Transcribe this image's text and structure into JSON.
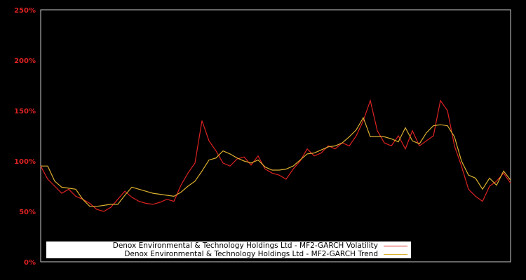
{
  "chart_data": {
    "type": "line",
    "title": "",
    "xlabel": "",
    "ylabel": "",
    "ylim": [
      0,
      250
    ],
    "y_ticks": [
      "0%",
      "50%",
      "100%",
      "150%",
      "200%",
      "250%"
    ],
    "y_tick_values": [
      0,
      50,
      100,
      150,
      200,
      250
    ],
    "grid": false,
    "legend_position": "lower center",
    "x_index": [
      0,
      1,
      2,
      3,
      4,
      5,
      6,
      7,
      8,
      9,
      10,
      11,
      12,
      13,
      14,
      15,
      16,
      17,
      18,
      19,
      20,
      21,
      22,
      23,
      24,
      25,
      26,
      27,
      28,
      29,
      30,
      31,
      32,
      33,
      34,
      35,
      36,
      37,
      38,
      39,
      40,
      41,
      42,
      43,
      44,
      45,
      46,
      47,
      48,
      49,
      50,
      51,
      52,
      53,
      54,
      55,
      56,
      57,
      58,
      59,
      60,
      61,
      62,
      63,
      64,
      65,
      66,
      67
    ],
    "series": [
      {
        "name": "Denox Environmental & Technology Holdings Ltd - MF2-GARCH Volatility",
        "color": "#dd2222",
        "values": [
          95,
          82,
          75,
          68,
          72,
          65,
          62,
          58,
          52,
          50,
          54,
          62,
          70,
          64,
          60,
          58,
          57,
          59,
          62,
          60,
          76,
          88,
          98,
          140,
          120,
          110,
          98,
          95,
          102,
          104,
          96,
          105,
          92,
          88,
          86,
          82,
          92,
          100,
          112,
          105,
          108,
          115,
          112,
          118,
          115,
          125,
          140,
          160,
          130,
          118,
          115,
          125,
          112,
          130,
          115,
          120,
          125,
          160,
          150,
          115,
          95,
          72,
          65,
          60,
          75,
          80,
          88,
          78
        ]
      },
      {
        "name": "Denox Environmental & Technology Holdings Ltd - MF2-GARCH Trend",
        "color": "#ddb030",
        "values": [
          95,
          95,
          80,
          74,
          73,
          72,
          62,
          55,
          55,
          56,
          57,
          57,
          66,
          74,
          72,
          70,
          68,
          67,
          66,
          65,
          69,
          75,
          80,
          90,
          101,
          103,
          110,
          107,
          103,
          100,
          98,
          101,
          94,
          91,
          91,
          92,
          95,
          101,
          107,
          108,
          111,
          114,
          115,
          118,
          124,
          131,
          143,
          124,
          124,
          124,
          122,
          119,
          133,
          120,
          117,
          128,
          135,
          136,
          135,
          124,
          100,
          86,
          83,
          72,
          83,
          76,
          90,
          81
        ]
      }
    ]
  },
  "axes": {
    "y_labels": [
      "250%",
      "200%",
      "150%",
      "100%",
      "50%",
      "0%"
    ]
  },
  "legend": {
    "items": [
      {
        "label": "Denox Environmental & Technology Holdings Ltd - MF2-GARCH Volatility",
        "color": "#dd2222"
      },
      {
        "label": "Denox Environmental & Technology Holdings Ltd - MF2-GARCH Trend",
        "color": "#ddb030"
      }
    ]
  }
}
